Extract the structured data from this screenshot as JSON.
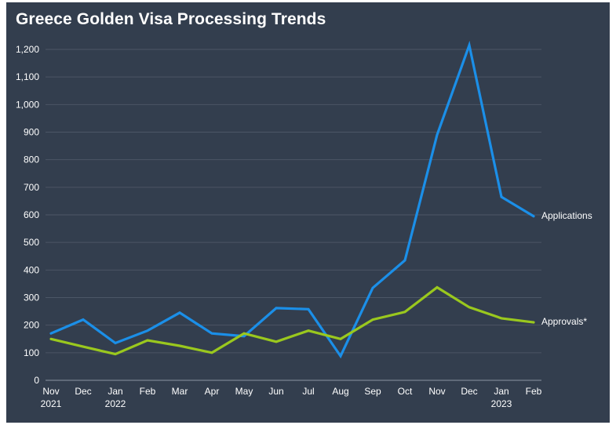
{
  "chart_data": {
    "type": "line",
    "title": "Greece Golden Visa Processing Trends",
    "xlabel": "",
    "ylabel": "",
    "categories": [
      "Nov",
      "Dec",
      "Jan",
      "Feb",
      "Mar",
      "Apr",
      "May",
      "Jun",
      "Jul",
      "Aug",
      "Sep",
      "Oct",
      "Nov",
      "Dec",
      "Jan",
      "Feb"
    ],
    "year_labels": [
      "2021",
      "",
      "2022",
      "",
      "",
      "",
      "",
      "",
      "",
      "",
      "",
      "",
      "",
      "",
      "2023",
      ""
    ],
    "ylim": [
      0,
      1200
    ],
    "yticks": [
      0,
      100,
      200,
      300,
      400,
      500,
      600,
      700,
      800,
      900,
      1000,
      1100,
      1200
    ],
    "ytick_labels": [
      "0",
      "100",
      "200",
      "300",
      "400",
      "500",
      "600",
      "700",
      "800",
      "900",
      "1,000",
      "1,100",
      "1,200"
    ],
    "grid": true,
    "legend": "inline-right",
    "series": [
      {
        "name": "Applications",
        "color": "#1b8fe8",
        "values": [
          170,
          220,
          135,
          180,
          245,
          170,
          160,
          262,
          258,
          88,
          335,
          435,
          890,
          1215,
          665,
          595
        ]
      },
      {
        "name": "Approvals*",
        "color": "#9ac81e",
        "values": [
          150,
          122,
          95,
          145,
          125,
          100,
          170,
          140,
          180,
          150,
          220,
          248,
          337,
          265,
          225,
          210
        ]
      }
    ]
  }
}
